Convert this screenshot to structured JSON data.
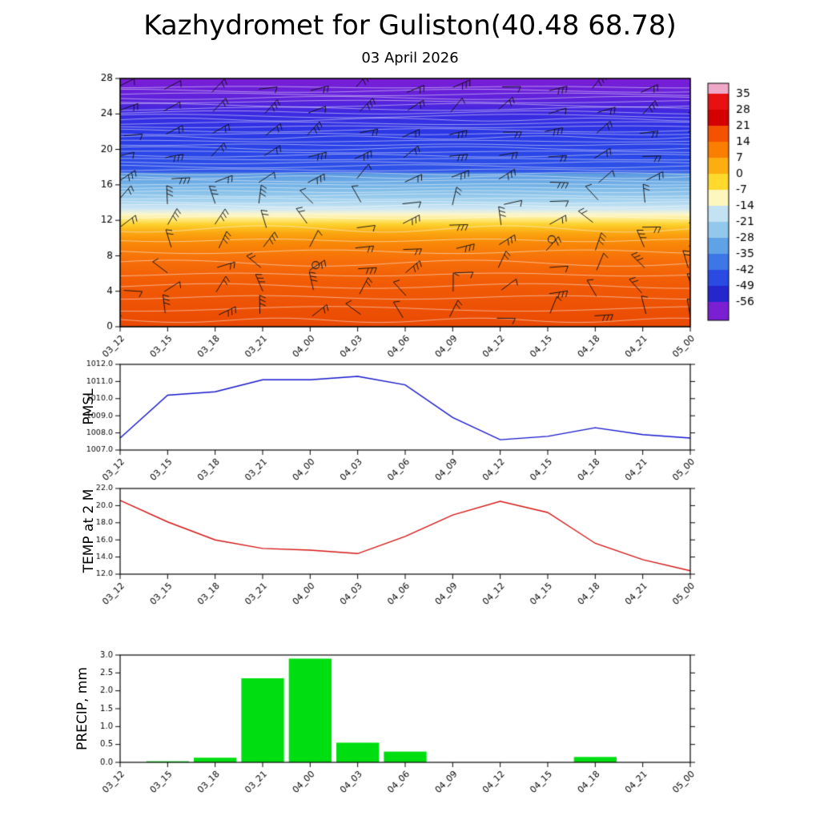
{
  "title": "Kazhydromet for Guliston(40.48 68.78)",
  "subtitle": "03 April 2026",
  "x_labels": [
    "03_12",
    "03_15",
    "03_18",
    "03_21",
    "04_00",
    "04_03",
    "04_06",
    "04_09",
    "04_12",
    "04_15",
    "04_18",
    "04_21",
    "05_00"
  ],
  "chart_data": [
    {
      "type": "heatmap",
      "name": "upper-air cross-section",
      "description": "Shaded temperature (deg C) with wind barbs, height level vs time",
      "ylim": [
        0,
        28
      ],
      "y_ticks": [
        0,
        4,
        8,
        12,
        16,
        20,
        24,
        28
      ],
      "colorbar_labels": [
        35,
        28,
        21,
        14,
        7,
        0,
        -7,
        -14,
        -21,
        -28,
        -35,
        -42,
        -49,
        -56
      ],
      "colorbar_colors": [
        "#f0a8c8",
        "#e81010",
        "#d40000",
        "#f55200",
        "#fa7e00",
        "#fcae10",
        "#ffd92b",
        "#fdf6bd",
        "#c3e2f2",
        "#92c8ec",
        "#60a2e6",
        "#3d76e6",
        "#2a4ae2",
        "#2526cc",
        "#7b1fd2"
      ],
      "gradient_stops": [
        [
          0.0,
          "#7d1ed6"
        ],
        [
          0.09,
          "#5b22dc"
        ],
        [
          0.14,
          "#3c2ae2"
        ],
        [
          0.22,
          "#2b38e6"
        ],
        [
          0.3,
          "#2a46e8"
        ],
        [
          0.375,
          "#2f55e8"
        ],
        [
          0.385,
          "#5e9ce2"
        ],
        [
          0.44,
          "#7ab8e8"
        ],
        [
          0.49,
          "#a3d2ee"
        ],
        [
          0.525,
          "#cfe8f4"
        ],
        [
          0.548,
          "#fdf7cc"
        ],
        [
          0.568,
          "#fee97e"
        ],
        [
          0.588,
          "#fdd22e"
        ],
        [
          0.62,
          "#fba912"
        ],
        [
          0.66,
          "#f98a07"
        ],
        [
          0.73,
          "#f7700a"
        ],
        [
          0.82,
          "#f25c06"
        ],
        [
          1.0,
          "#ea4a04"
        ]
      ],
      "wind_barbs": {
        "columns": 13,
        "rows": 11
      },
      "calm_markers": [
        {
          "x_frac": 0.343,
          "y_frac": 0.752
        },
        {
          "x_frac": 0.757,
          "y_frac": 0.648
        }
      ]
    },
    {
      "type": "line",
      "name": "PMSL",
      "ylabel": "PMSL",
      "color": "#1414cc",
      "ylim": [
        1007.0,
        1012.0
      ],
      "y_ticks": [
        1007.0,
        1008.0,
        1009.0,
        1010.0,
        1011.0,
        1012.0
      ],
      "values": [
        1007.7,
        1010.2,
        1010.4,
        1011.1,
        1011.1,
        1011.3,
        1010.8,
        1008.9,
        1007.6,
        1007.8,
        1008.3,
        1007.9,
        1007.7
      ]
    },
    {
      "type": "line",
      "name": "TEMP at 2 M",
      "ylabel": "TEMP at 2 M",
      "color": "#d41414",
      "ylim": [
        12.0,
        22.0
      ],
      "y_ticks": [
        12.0,
        14.0,
        16.0,
        18.0,
        20.0,
        22.0
      ],
      "values": [
        20.6,
        18.1,
        16.0,
        15.0,
        14.8,
        14.4,
        16.4,
        18.9,
        20.5,
        19.2,
        15.6,
        13.7,
        12.4
      ]
    },
    {
      "type": "bar",
      "name": "PRECIP, mm",
      "ylabel": "PRECIP, mm",
      "color": "#00dd10",
      "ylim": [
        0.0,
        3.0
      ],
      "y_ticks": [
        0.0,
        0.5,
        1.0,
        1.5,
        2.0,
        2.5,
        3.0
      ],
      "values": [
        0,
        0.03,
        0.13,
        2.35,
        2.9,
        0.55,
        0.3,
        0,
        0,
        0,
        0.15,
        0,
        0
      ]
    }
  ]
}
